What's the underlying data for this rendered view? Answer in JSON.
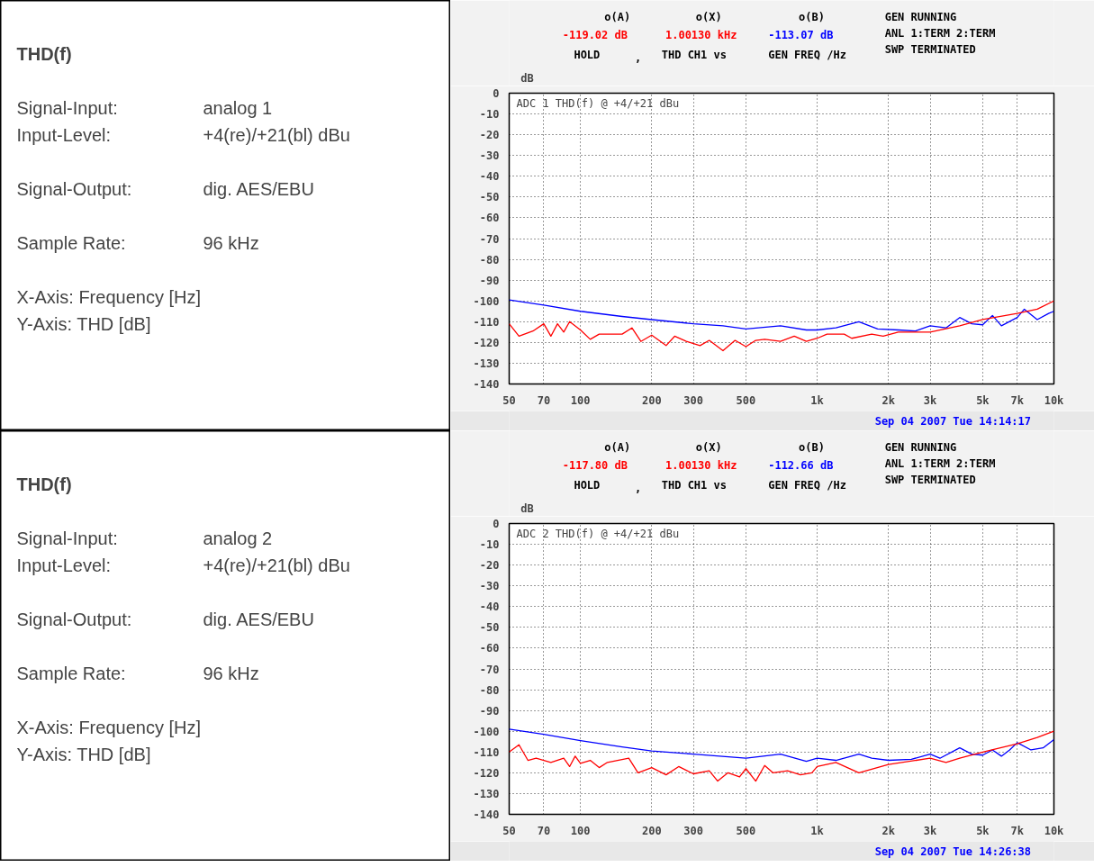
{
  "chart_data": [
    {
      "type": "other",
      "title": "THD(f)",
      "annotations": [
        "Signal-Input:",
        "analog 1",
        "Input-Level:",
        "+4(re)/+21(bl) dBu",
        "Signal-Output:",
        "dig. AES/EBU",
        "Sample Rate:",
        "96 kHz",
        "X-Axis: Frequency [Hz]",
        "Y-Axis: THD [dB]"
      ]
    },
    {
      "type": "line",
      "title": "ADC 1 THD(f) @ +4/+21 dBu",
      "ylabel": "dB",
      "log": "x",
      "grid": true,
      "line_style": "solid",
      "xlim": [
        50,
        10000
      ],
      "ylim": [
        -140,
        0
      ],
      "xticks": [
        50,
        70,
        100,
        200,
        300,
        500,
        {
          "value": 1000,
          "label": "1k"
        },
        {
          "value": 2000,
          "label": "2k"
        },
        {
          "value": 3000,
          "label": "3k"
        },
        {
          "value": 5000,
          "label": "5k"
        },
        {
          "value": 7000,
          "label": "7k"
        },
        {
          "value": 10000,
          "label": "10k"
        }
      ],
      "yticks": [
        0,
        -10,
        -20,
        -30,
        -40,
        -50,
        -60,
        -70,
        -80,
        -90,
        -100,
        -110,
        -120,
        -130,
        -140
      ],
      "annotations": [
        "o(A)",
        "-119.02 dB",
        "HOLD",
        ",",
        "o(X)",
        "1.00130 kHz",
        "THD   CH1 vs",
        "o(B)",
        "-113.07 dB",
        "GEN FREQ /Hz",
        "GEN RUNNING",
        "ANL 1:TERM 2:TERM",
        "SWP TERMINATED",
        "Sep 04 2007 Tue 14:14:17"
      ],
      "series": [
        {
          "color": "#0000ff",
          "x": [
            50,
            70,
            100,
            150,
            200,
            300,
            400,
            500,
            700,
            900,
            1000,
            1200,
            1500,
            1800,
            2200,
            2600,
            3000,
            3500,
            4000,
            4500,
            5000,
            5500,
            6000,
            7000,
            7500,
            8500,
            9500,
            10000
          ],
          "values": [
            -99.5,
            -102,
            -105,
            -107.5,
            -109,
            -111,
            -112,
            -113.5,
            -112,
            -114,
            -114,
            -113,
            -110,
            -113.5,
            -114,
            -114.5,
            -112,
            -113,
            -108,
            -111,
            -111.5,
            -107,
            -112,
            -108,
            -104,
            -109,
            -106,
            -105
          ]
        },
        {
          "color": "#ff0000",
          "x": [
            50,
            55,
            63,
            70,
            75,
            80,
            85,
            90,
            100,
            110,
            120,
            150,
            165,
            180,
            200,
            230,
            250,
            280,
            320,
            350,
            400,
            450,
            500,
            550,
            600,
            700,
            800,
            900,
            1000,
            1100,
            1300,
            1400,
            1700,
            1900,
            2200,
            3000,
            4000,
            5000,
            7000,
            8500,
            10000
          ],
          "values": [
            -111,
            -117,
            -114.5,
            -111,
            -117,
            -111,
            -115,
            -110,
            -114,
            -118.5,
            -116,
            -116,
            -113,
            -119.5,
            -116.5,
            -121.5,
            -117,
            -119.5,
            -121.5,
            -119,
            -124,
            -119,
            -122,
            -119,
            -118.5,
            -119.5,
            -117,
            -119.5,
            -118,
            -116,
            -116,
            -118,
            -116,
            -117,
            -115,
            -115,
            -112,
            -109,
            -106,
            -104,
            -100
          ]
        }
      ]
    },
    {
      "type": "other",
      "title": "THD(f)",
      "annotations": [
        "Signal-Input:",
        "analog 2",
        "Input-Level:",
        "+4(re)/+21(bl) dBu",
        "Signal-Output:",
        "dig. AES/EBU",
        "Sample Rate:",
        "96 kHz",
        "X-Axis: Frequency [Hz]",
        "Y-Axis: THD [dB]"
      ]
    },
    {
      "type": "line",
      "title": "ADC 2 THD(f) @ +4/+21 dBu",
      "ylabel": "dB",
      "log": "x",
      "grid": true,
      "line_style": "solid",
      "xlim": [
        50,
        10000
      ],
      "ylim": [
        -140,
        0
      ],
      "xticks": [
        50,
        70,
        100,
        200,
        300,
        500,
        {
          "value": 1000,
          "label": "1k"
        },
        {
          "value": 2000,
          "label": "2k"
        },
        {
          "value": 3000,
          "label": "3k"
        },
        {
          "value": 5000,
          "label": "5k"
        },
        {
          "value": 7000,
          "label": "7k"
        },
        {
          "value": 10000,
          "label": "10k"
        }
      ],
      "yticks": [
        0,
        -10,
        -20,
        -30,
        -40,
        -50,
        -60,
        -70,
        -80,
        -90,
        -100,
        -110,
        -120,
        -130,
        -140
      ],
      "annotations": [
        "o(A)",
        "-117.80 dB",
        "HOLD",
        ",",
        "o(X)",
        "1.00130 kHz",
        "THD   CH1 vs",
        "o(B)",
        "-112.66 dB",
        "GEN FREQ /Hz",
        "GEN RUNNING",
        "ANL 1:TERM 2:TERM",
        "SWP TERMINATED",
        "Sep 04 2007 Tue 14:26:38"
      ],
      "series": [
        {
          "color": "#0000ff",
          "x": [
            50,
            70,
            100,
            150,
            200,
            300,
            500,
            700,
            900,
            1000,
            1200,
            1500,
            1700,
            2000,
            2500,
            3000,
            3300,
            4000,
            4500,
            5000,
            5500,
            6000,
            6500,
            7000,
            8000,
            9000,
            10000
          ],
          "values": [
            -99,
            -101.5,
            -104.5,
            -107.5,
            -109.5,
            -111,
            -113,
            -111,
            -114.5,
            -113,
            -114,
            -111,
            -113,
            -114,
            -113.5,
            -111,
            -113,
            -108,
            -111,
            -111.5,
            -109,
            -112,
            -109,
            -105.5,
            -109,
            -108,
            -104
          ]
        },
        {
          "color": "#ff0000",
          "x": [
            50,
            55,
            60,
            65,
            75,
            85,
            90,
            95,
            100,
            110,
            120,
            130,
            160,
            175,
            200,
            230,
            260,
            300,
            350,
            380,
            420,
            470,
            500,
            550,
            600,
            650,
            750,
            850,
            950,
            1000,
            1200,
            1500,
            2000,
            3000,
            3500,
            4000,
            5000,
            7000,
            8500,
            10000
          ],
          "values": [
            -110,
            -106.5,
            -114,
            -113,
            -115,
            -113,
            -117,
            -112,
            -115.5,
            -114,
            -117.5,
            -115,
            -113,
            -120,
            -117.5,
            -121,
            -117,
            -120.5,
            -119,
            -124,
            -120,
            -122,
            -118,
            -124,
            -116.5,
            -120,
            -119,
            -121,
            -120,
            -117,
            -115,
            -120,
            -116,
            -113,
            -115,
            -113,
            -110,
            -106,
            -103,
            -100
          ]
        }
      ]
    }
  ]
}
